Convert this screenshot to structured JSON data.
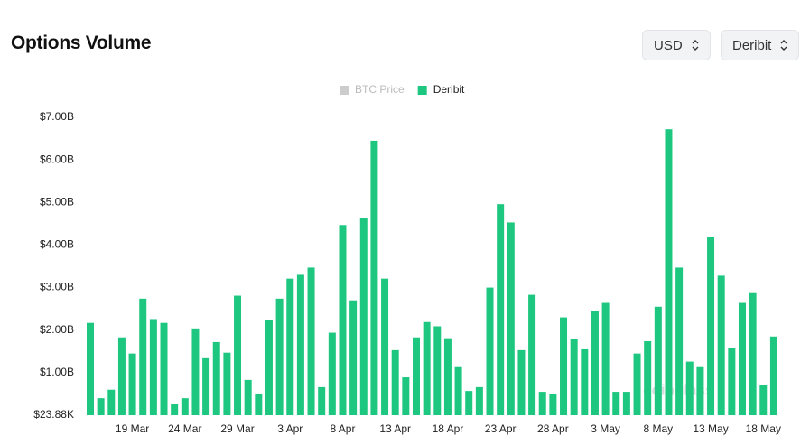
{
  "header": {
    "title": "Options Volume",
    "controls": [
      "USD",
      "Deribit"
    ]
  },
  "chart_data": {
    "type": "bar",
    "categories": [
      null,
      null,
      null,
      null,
      "19 Mar",
      null,
      null,
      null,
      null,
      "24 Mar",
      null,
      null,
      null,
      null,
      "29 Mar",
      null,
      null,
      null,
      null,
      "3 Apr",
      null,
      null,
      null,
      null,
      "8 Apr",
      null,
      null,
      null,
      null,
      "13 Apr",
      null,
      null,
      null,
      null,
      "18 Apr",
      null,
      null,
      null,
      null,
      "23 Apr",
      null,
      null,
      null,
      null,
      "28 Apr",
      null,
      null,
      null,
      null,
      "3 May",
      null,
      null,
      null,
      null,
      "8 May",
      null,
      null,
      null,
      null,
      "13 May",
      null,
      null,
      null,
      null,
      "18 May",
      null
    ],
    "series": [
      {
        "name": "Deribit",
        "color": "#1ec77f",
        "values": [
          2.17,
          0.4,
          0.6,
          1.83,
          1.45,
          2.74,
          2.26,
          2.17,
          0.26,
          0.4,
          2.04,
          1.34,
          1.72,
          1.47,
          2.81,
          0.83,
          0.51,
          2.23,
          2.74,
          3.21,
          3.3,
          3.47,
          0.66,
          1.94,
          4.47,
          2.7,
          4.64,
          6.45,
          3.21,
          1.53,
          0.89,
          1.83,
          2.19,
          2.09,
          1.81,
          1.13,
          0.57,
          0.66,
          3.0,
          4.96,
          4.53,
          1.53,
          2.83,
          0.55,
          0.51,
          2.3,
          1.79,
          1.55,
          2.45,
          2.64,
          0.55,
          0.55,
          1.45,
          1.74,
          2.55,
          6.72,
          3.47,
          1.26,
          1.13,
          4.19,
          3.28,
          1.57,
          2.64,
          2.87,
          0.7,
          1.85
        ]
      }
    ],
    "disabled_legend": [
      {
        "name": "BTC Price",
        "color": "#cccccc"
      }
    ],
    "ylim": [
      2.388e-05,
      7
    ],
    "yticks": [
      {
        "value": 2.388e-05,
        "label": "$23.88K"
      },
      {
        "value": 1,
        "label": "$1.00B"
      },
      {
        "value": 2,
        "label": "$2.00B"
      },
      {
        "value": 3,
        "label": "$3.00B"
      },
      {
        "value": 4,
        "label": "$4.00B"
      },
      {
        "value": 5,
        "label": "$5.00B"
      },
      {
        "value": 6,
        "label": "$6.00B"
      },
      {
        "value": 7,
        "label": "$7.00B"
      }
    ],
    "watermark": "coinglass"
  }
}
